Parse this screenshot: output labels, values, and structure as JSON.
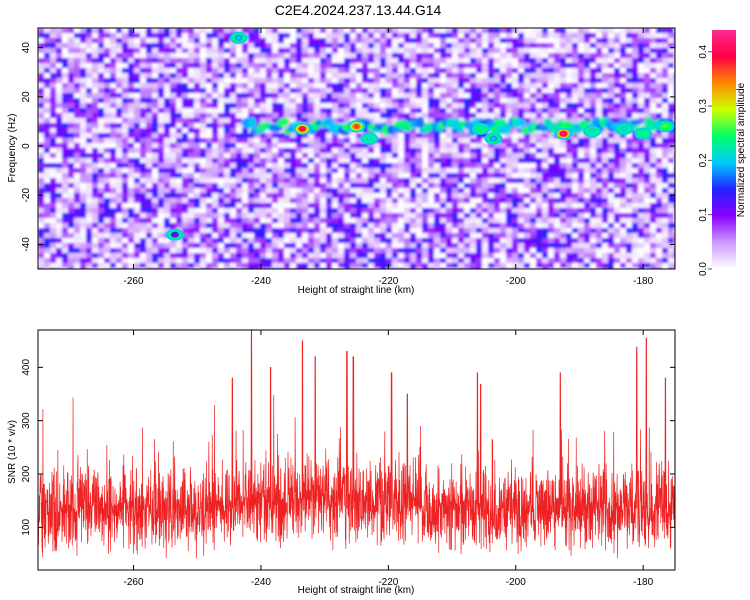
{
  "page_title": "C2E4.2024.237.13.44.G14",
  "chart_data": [
    {
      "type": "heatmap",
      "title": "C2E4.2024.237.13.44.G14",
      "xlabel": "Height of straight line (km)",
      "ylabel": "Frequency (Hz)",
      "xlim": [
        -275.0,
        -175.0
      ],
      "ylim": [
        -50,
        48
      ],
      "x_ticks": [
        -260,
        -240,
        -220,
        -200,
        -180
      ],
      "y_ticks": [
        -40,
        -20,
        0,
        20,
        40
      ],
      "colorbar": {
        "label": "Normalized spectral amplitude",
        "range": [
          0.0,
          0.44
        ],
        "ticks": [
          "0.0",
          "0.1",
          "0.2",
          "0.3",
          "0.4"
        ],
        "colors": [
          "#ffffff",
          "#cc99ff",
          "#8800ff",
          "#2222ff",
          "#00ccff",
          "#00ff66",
          "#ccff00",
          "#ff8800",
          "#ff0044",
          "#ff2a90"
        ]
      },
      "signal_band_frequency_hz": 8,
      "signal_band_x_range": [
        -242,
        -175
      ],
      "hot_spots": [
        {
          "x": -233.5,
          "y": 7,
          "value": 0.38
        },
        {
          "x": -225,
          "y": 8,
          "value": 0.35
        },
        {
          "x": -223,
          "y": 3,
          "value": 0.2
        },
        {
          "x": -205.5,
          "y": 7,
          "value": 0.22
        },
        {
          "x": -203.5,
          "y": 3,
          "value": 0.18
        },
        {
          "x": -192.5,
          "y": 5,
          "value": 0.4
        },
        {
          "x": -188,
          "y": 6,
          "value": 0.2
        },
        {
          "x": -183,
          "y": 7,
          "value": 0.2
        },
        {
          "x": -180,
          "y": 5,
          "value": 0.22
        },
        {
          "x": -176.5,
          "y": 8,
          "value": 0.25
        },
        {
          "x": -243.5,
          "y": 44,
          "value": 0.18
        },
        {
          "x": -253.5,
          "y": -36,
          "value": 0.12
        }
      ]
    },
    {
      "type": "line",
      "xlabel": "Height of straight line (km)",
      "ylabel": "SNR (10 * v/v)",
      "xlim": [
        -275.0,
        -175.0
      ],
      "ylim": [
        20,
        470
      ],
      "x_ticks": [
        -260,
        -240,
        -220,
        -200,
        -180
      ],
      "y_ticks": [
        100,
        200,
        300,
        400
      ],
      "line_color": "#ee2222",
      "baseline_mean": 135,
      "peaks": [
        {
          "x": -244.5,
          "y": 380
        },
        {
          "x": -241.5,
          "y": 470
        },
        {
          "x": -238.5,
          "y": 400
        },
        {
          "x": -233.5,
          "y": 450
        },
        {
          "x": -231.5,
          "y": 420
        },
        {
          "x": -226.5,
          "y": 430
        },
        {
          "x": -225.5,
          "y": 420
        },
        {
          "x": -219.5,
          "y": 390
        },
        {
          "x": -217,
          "y": 350
        },
        {
          "x": -206,
          "y": 390
        },
        {
          "x": -205.5,
          "y": 368
        },
        {
          "x": -193,
          "y": 390
        },
        {
          "x": -181,
          "y": 438
        },
        {
          "x": -179.5,
          "y": 455
        },
        {
          "x": -176.5,
          "y": 380
        }
      ]
    }
  ]
}
